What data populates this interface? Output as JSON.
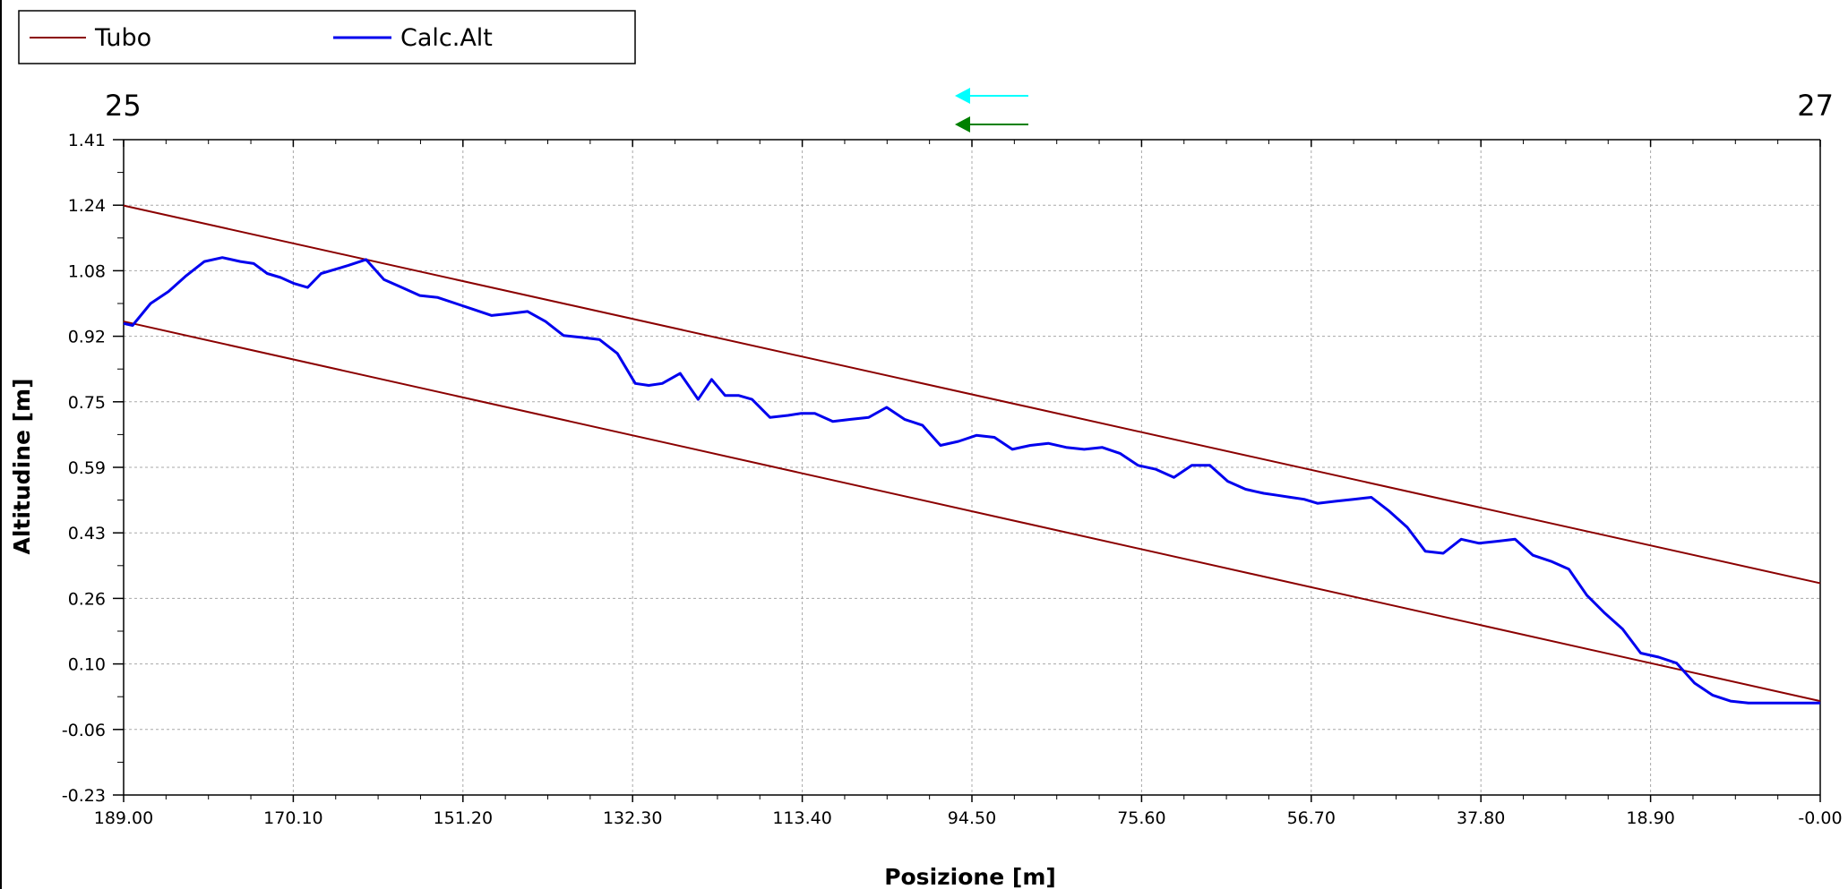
{
  "chart_data": {
    "type": "line",
    "title": "",
    "xlabel": "Posizione [m]",
    "ylabel": "Altitudine [m]",
    "xlim": [
      189.0,
      0.0
    ],
    "ylim": [
      -0.23,
      1.41
    ],
    "x_reversed": true,
    "grid": true,
    "legend": "top-left",
    "x_ticks": [
      "189.00",
      "170.10",
      "151.20",
      "132.30",
      "113.40",
      "94.50",
      "75.60",
      "56.70",
      "37.80",
      "18.90",
      "-0.00"
    ],
    "y_ticks": [
      "1.41",
      "1.24",
      "1.08",
      "0.92",
      "0.75",
      "0.59",
      "0.43",
      "0.26",
      "0.10",
      "-0.06",
      "-0.23"
    ],
    "end_labels": {
      "left": "25",
      "right": "27"
    },
    "flow_arrows": [
      {
        "color": "#00ffff",
        "direction": "left"
      },
      {
        "color": "#008000",
        "direction": "left"
      }
    ],
    "series": [
      {
        "name": "Tubo",
        "color": "#8b0000",
        "lines": [
          {
            "x": [
              189.0,
              0.0
            ],
            "y": [
              1.245,
              0.3
            ]
          },
          {
            "x": [
              189.0,
              0.0
            ],
            "y": [
              0.955,
              0.005
            ]
          }
        ]
      },
      {
        "name": "Calc.Alt",
        "color": "#0000ee",
        "x": [
          189,
          188,
          186,
          184,
          182,
          180,
          178,
          176,
          174.5,
          173,
          171.5,
          170,
          168.5,
          167,
          165.5,
          164,
          162,
          160,
          158,
          156,
          154,
          152,
          150,
          148,
          146,
          144,
          142,
          140,
          138,
          136,
          134,
          132,
          130.5,
          129,
          127,
          125,
          123.5,
          122,
          120.5,
          119,
          117,
          115,
          113.5,
          112,
          110,
          108,
          106,
          104,
          102,
          100,
          98,
          96,
          94,
          92,
          90,
          88,
          86,
          84,
          82,
          80,
          78,
          76,
          74,
          72,
          70,
          68,
          66,
          64,
          63,
          62,
          60.5,
          59,
          57.5,
          56,
          54,
          52,
          50,
          48,
          46,
          44,
          42,
          40,
          38,
          36,
          34,
          32,
          30,
          28,
          26,
          24,
          22,
          20,
          18,
          16,
          14,
          12,
          10,
          8,
          6,
          4,
          2,
          0.5,
          0
        ],
        "y": [
          0.95,
          0.945,
          1.0,
          1.03,
          1.07,
          1.105,
          1.115,
          1.105,
          1.1,
          1.075,
          1.065,
          1.05,
          1.04,
          1.075,
          1.085,
          1.095,
          1.11,
          1.06,
          1.04,
          1.02,
          1.015,
          1.0,
          0.985,
          0.97,
          0.975,
          0.98,
          0.955,
          0.92,
          0.915,
          0.91,
          0.875,
          0.8,
          0.795,
          0.8,
          0.825,
          0.76,
          0.81,
          0.77,
          0.77,
          0.76,
          0.715,
          0.72,
          0.725,
          0.725,
          0.705,
          0.71,
          0.715,
          0.74,
          0.71,
          0.695,
          0.645,
          0.655,
          0.67,
          0.665,
          0.635,
          0.645,
          0.65,
          0.64,
          0.635,
          0.64,
          0.625,
          0.595,
          0.585,
          0.565,
          0.595,
          0.595,
          0.555,
          0.535,
          0.53,
          0.525,
          0.52,
          0.515,
          0.51,
          0.5,
          0.505,
          0.51,
          0.515,
          0.48,
          0.44,
          0.38,
          0.375,
          0.41,
          0.4,
          0.405,
          0.41,
          0.37,
          0.355,
          0.335,
          0.27,
          0.225,
          0.185,
          0.125,
          0.115,
          0.1,
          0.05,
          0.02,
          0.005,
          0.0,
          0.0,
          0.0,
          0.0,
          0.0,
          0.0
        ]
      }
    ]
  }
}
